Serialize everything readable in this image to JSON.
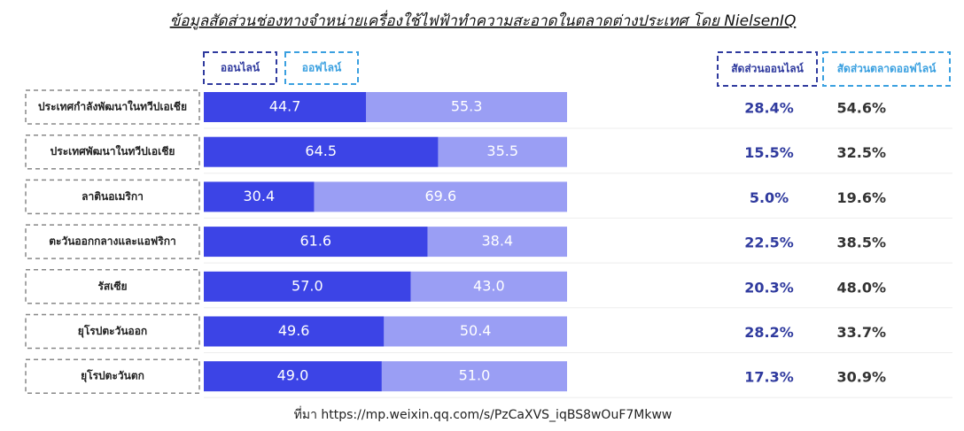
{
  "chart_data": {
    "type": "bar",
    "orientation": "horizontal",
    "stacked": true,
    "title": "ข้อมูลสัดส่วนช่องทางจำหน่ายเครื่องใช้ไฟฟ้าทำความสะอาดในตลาดต่างประเทศ โดย NielsenIQ",
    "source": "ที่มา https://mp.weixin.qq.com/s/PzCaXVS_iqBS8wOuF7Mkww",
    "categories": [
      "ประเทศกำลังพัฒนาในทวีปเอเชีย",
      "ประเทศพัฒนาในทวีปเอเชีย",
      "ลาตินอเมริกา",
      "ตะวันออกกลางและแอฟริกา",
      "รัสเซีย",
      "ยุโรปตะวันออก",
      "ยุโรปตะวันตก"
    ],
    "series": [
      {
        "name": "ออนไลน์",
        "color": "#3c44e6",
        "values": [
          44.7,
          64.5,
          30.4,
          61.6,
          57.0,
          49.6,
          49.0
        ],
        "value_labels": [
          "44.7",
          "64.5",
          "30.4",
          "61.6",
          "57.0",
          "49.6",
          "49.0"
        ]
      },
      {
        "name": "ออฟไลน์",
        "color": "#9a9ef4",
        "values": [
          55.3,
          35.5,
          69.6,
          38.4,
          43.0,
          50.4,
          51.0
        ],
        "value_labels": [
          "55.3",
          "35.5",
          "69.6",
          "38.4",
          "43.0",
          "50.4",
          "51.0"
        ]
      }
    ],
    "columns": [
      {
        "name": "สัดส่วนออนไลน์",
        "color": "#2f3a9e",
        "values": [
          28.4,
          15.5,
          5.0,
          22.5,
          20.3,
          28.2,
          17.3
        ],
        "value_labels": [
          "28.4%",
          "15.5%",
          "5.0%",
          "22.5%",
          "20.3%",
          "28.2%",
          "17.3%"
        ]
      },
      {
        "name": "สัดส่วนตลาดออฟไลน์",
        "color": "#333333",
        "values": [
          54.6,
          32.5,
          19.6,
          38.5,
          48.0,
          33.7,
          30.9
        ],
        "value_labels": [
          "54.6%",
          "32.5%",
          "19.6%",
          "38.5%",
          "48.0%",
          "33.7%",
          "30.9%"
        ]
      }
    ]
  }
}
